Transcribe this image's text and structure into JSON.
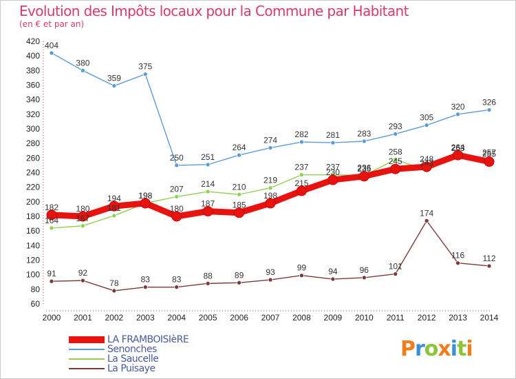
{
  "title": "Evolution des Impôts locaux pour la Commune par Habitant",
  "subtitle": "(en € et par an)",
  "logo": {
    "text": "Proxiti",
    "colors": [
      "#f07e1c",
      "#3a8fd6",
      "#8cc43c"
    ]
  },
  "chart_data": {
    "type": "line",
    "title": "Evolution des Impôts locaux pour la Commune par Habitant",
    "subtitle": "(en € et par an)",
    "x": [
      "2000",
      "2001",
      "2002",
      "2003",
      "2004",
      "2005",
      "2006",
      "2007",
      "2008",
      "2009",
      "2010",
      "2011",
      "2012",
      "2013",
      "2014"
    ],
    "ylim": [
      60,
      420
    ],
    "yticks": [
      60,
      80,
      100,
      120,
      140,
      160,
      180,
      200,
      220,
      240,
      260,
      280,
      300,
      320,
      340,
      360,
      380,
      400,
      420
    ],
    "grid": false,
    "legend_position": "bottom-left",
    "series": [
      {
        "name": "LA FRAMBOISIèRE",
        "color": "#e8120e",
        "values": [
          182,
          180,
          194,
          198,
          180,
          187,
          185,
          198,
          215,
          230,
          235,
          245,
          248,
          264,
          255
        ]
      },
      {
        "name": "Senonches",
        "color": "#5b9bd5",
        "values": [
          404,
          380,
          359,
          375,
          250,
          251,
          264,
          274,
          282,
          281,
          283,
          293,
          305,
          320,
          326
        ]
      },
      {
        "name": "La Saucelle",
        "color": "#8fd14f",
        "values": [
          164,
          167,
          181,
          198,
          207,
          214,
          210,
          219,
          237,
          237,
          236,
          258,
          243,
          263,
          257
        ]
      },
      {
        "name": "La Puisaye",
        "color": "#7b3a3a",
        "values": [
          91,
          92,
          78,
          83,
          83,
          88,
          89,
          93,
          99,
          94,
          96,
          101,
          174,
          116,
          112
        ]
      }
    ],
    "labels": [
      {
        "series": 1,
        "values": [
          404,
          380,
          359,
          375,
          250,
          251,
          264,
          274,
          282,
          281,
          283,
          293,
          305,
          320,
          326
        ]
      },
      {
        "series": 0,
        "values": [
          182,
          180,
          194,
          198,
          180,
          187,
          185,
          198,
          215,
          230,
          235,
          245,
          248,
          264,
          255
        ]
      },
      {
        "series": 2,
        "values": [
          164,
          167,
          181,
          198,
          207,
          214,
          210,
          219,
          237,
          237,
          236,
          258,
          243,
          263,
          257
        ]
      },
      {
        "series": 3,
        "values": [
          91,
          92,
          78,
          83,
          83,
          88,
          89,
          93,
          99,
          94,
          96,
          101,
          174,
          116,
          112
        ]
      }
    ]
  }
}
